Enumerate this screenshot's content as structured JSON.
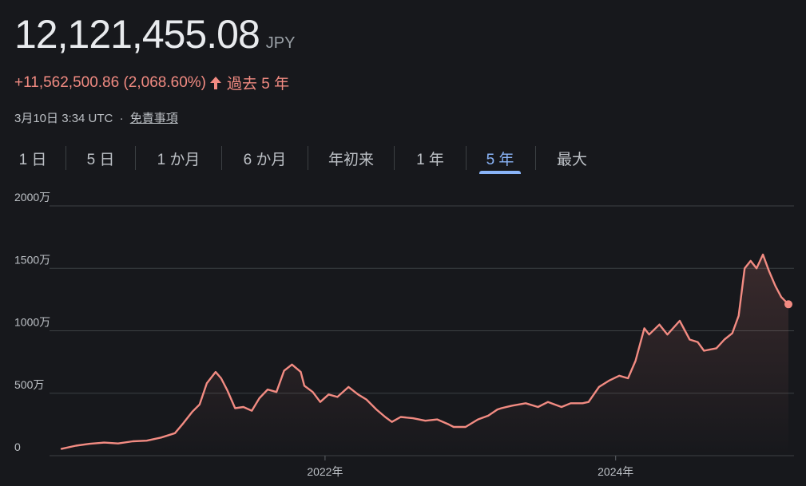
{
  "price": {
    "value": "12,121,455.08",
    "currency": "JPY"
  },
  "change": {
    "text": "+11,562,500.86 (2,068.60%)",
    "period": "過去 5 年",
    "direction": "up"
  },
  "meta": {
    "timestamp": "3月10日 3:34 UTC",
    "separator": "·",
    "disclaimer": "免責事項"
  },
  "tabs": [
    {
      "label": "1 日",
      "active": false
    },
    {
      "label": "5 日",
      "active": false
    },
    {
      "label": "1 か月",
      "active": false
    },
    {
      "label": "6 か月",
      "active": false
    },
    {
      "label": "年初来",
      "active": false
    },
    {
      "label": "1 年",
      "active": false
    },
    {
      "label": "5 年",
      "active": true
    },
    {
      "label": "最大",
      "active": false
    }
  ],
  "colors": {
    "background": "#17181c",
    "line": "#f28b82",
    "accent": "#8ab4f8",
    "grid": "#3c4043"
  },
  "chart_data": {
    "type": "line",
    "xlabel": "",
    "ylabel": "",
    "yticks": [
      {
        "value": 0,
        "label": "0"
      },
      {
        "value": 5000000,
        "label": "500万"
      },
      {
        "value": 10000000,
        "label": "1000万"
      },
      {
        "value": 15000000,
        "label": "1500万"
      },
      {
        "value": 20000000,
        "label": "2000万"
      }
    ],
    "xticks": [
      {
        "value": "2022-01-01",
        "label": "2022年"
      },
      {
        "value": "2024-01-01",
        "label": "2024年"
      }
    ],
    "ylim": [
      0,
      20000000
    ],
    "xlim": [
      "2020-03-10",
      "2025-03-10"
    ],
    "grid": true,
    "series": [
      {
        "x": [
          "2020-03-10",
          "2020-04-15",
          "2020-05-20",
          "2020-06-25",
          "2020-07-30",
          "2020-09-05",
          "2020-10-10",
          "2020-11-15",
          "2020-12-20",
          "2021-01-10",
          "2021-02-01",
          "2021-02-20",
          "2021-03-10",
          "2021-04-01",
          "2021-04-15",
          "2021-05-01",
          "2021-05-20",
          "2021-06-10",
          "2021-07-01",
          "2021-07-20",
          "2021-08-10",
          "2021-09-01",
          "2021-09-20",
          "2021-10-10",
          "2021-11-01",
          "2021-11-10",
          "2021-12-01",
          "2021-12-20",
          "2022-01-10",
          "2022-02-01",
          "2022-03-01",
          "2022-03-25",
          "2022-04-15",
          "2022-05-10",
          "2022-06-01",
          "2022-06-18",
          "2022-07-10",
          "2022-08-10",
          "2022-09-10",
          "2022-10-10",
          "2022-11-08",
          "2022-11-20",
          "2022-12-20",
          "2023-01-20",
          "2023-02-15",
          "2023-03-10",
          "2023-03-20",
          "2023-04-15",
          "2023-05-20",
          "2023-06-20",
          "2023-07-15",
          "2023-08-18",
          "2023-09-10",
          "2023-10-10",
          "2023-10-25",
          "2023-11-20",
          "2023-12-15",
          "2024-01-10",
          "2024-02-01",
          "2024-02-20",
          "2024-03-13",
          "2024-03-25",
          "2024-04-20",
          "2024-05-10",
          "2024-06-10",
          "2024-07-05",
          "2024-07-25",
          "2024-08-10",
          "2024-09-10",
          "2024-09-30",
          "2024-10-20",
          "2024-11-05",
          "2024-11-20",
          "2024-12-05",
          "2024-12-20",
          "2025-01-05",
          "2025-01-20",
          "2025-02-05",
          "2025-02-20",
          "2025-03-10"
        ],
        "values": [
          550000,
          800000,
          950000,
          1050000,
          980000,
          1150000,
          1200000,
          1450000,
          1800000,
          2600000,
          3500000,
          4100000,
          5800000,
          6700000,
          6200000,
          5200000,
          3800000,
          3900000,
          3600000,
          4600000,
          5300000,
          5100000,
          6800000,
          7300000,
          6700000,
          5600000,
          5100000,
          4300000,
          4900000,
          4700000,
          5500000,
          4900000,
          4500000,
          3700000,
          3100000,
          2700000,
          3100000,
          3000000,
          2800000,
          2900000,
          2500000,
          2300000,
          2300000,
          2900000,
          3200000,
          3700000,
          3800000,
          4000000,
          4200000,
          3900000,
          4300000,
          3900000,
          4200000,
          4200000,
          4300000,
          5500000,
          6000000,
          6400000,
          6200000,
          7600000,
          10200000,
          9700000,
          10500000,
          9700000,
          10800000,
          9300000,
          9100000,
          8400000,
          8600000,
          9300000,
          9800000,
          11200000,
          15000000,
          15600000,
          15000000,
          16100000,
          14800000,
          13600000,
          12700000,
          12121455
        ]
      }
    ]
  }
}
